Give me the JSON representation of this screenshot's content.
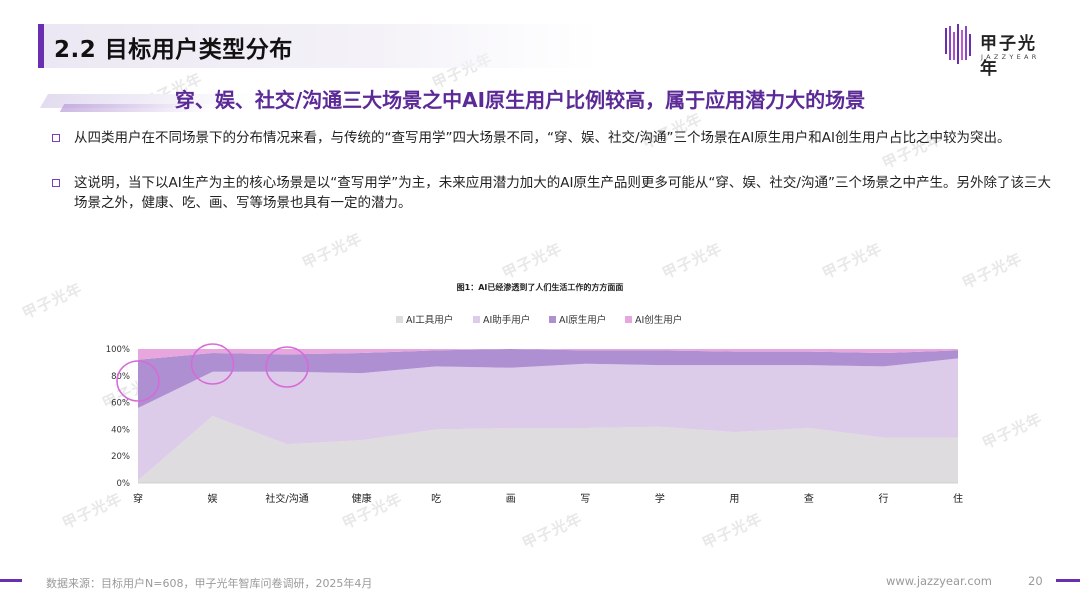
{
  "header": {
    "title": "2.2 目标用户类型分布",
    "logo_cn": "甲子光年",
    "logo_en": "JAZZYEAR"
  },
  "headline": "穿、娱、社交/沟通三大场景之中AI原生用户比例较高，属于应用潜力大的场景",
  "bullets": [
    "从四类用户在不同场景下的分布情况来看，与传统的“查写用学”四大场景不同，“穿、娱、社交/沟通”三个场景在AI原生用户和AI创生用户占比之中较为突出。",
    "这说明，当下以AI生产为主的核心场景是以“查写用学”为主，未来应用潜力加大的AI原生产品则更多可能从“穿、娱、社交/沟通”三个场景之中产生。另外除了该三大场景之外，健康、吃、画、写等场景也具有一定的潜力。"
  ],
  "colors": {
    "accent": "#6a2fb0",
    "headline": "#5b2a96",
    "series": [
      "#dedcde",
      "#dccbe9",
      "#ad8fd2",
      "#e7a6de"
    ],
    "highlight_circle": "#d76ad9"
  },
  "chart_data": {
    "type": "area",
    "stacked": "percent",
    "title": "图1：AI已经渗透到了人们生活工作的方方面面",
    "categories": [
      "穿",
      "娱",
      "社交/沟通",
      "健康",
      "吃",
      "画",
      "写",
      "学",
      "用",
      "查",
      "行",
      "住"
    ],
    "series": [
      {
        "name": "AI工具用户",
        "values": [
          2,
          50,
          29,
          32,
          40,
          41,
          41,
          42,
          38,
          41,
          34,
          34
        ]
      },
      {
        "name": "AI助手用户",
        "values": [
          54,
          33,
          54,
          50,
          47,
          45,
          48,
          46,
          50,
          47,
          53,
          59
        ]
      },
      {
        "name": "AI原生用户",
        "values": [
          36,
          14,
          13,
          15,
          12,
          14,
          10,
          11,
          10,
          10,
          10,
          6
        ]
      },
      {
        "name": "AI创生用户",
        "values": [
          8,
          3,
          4,
          3,
          1,
          0,
          1,
          1,
          2,
          2,
          3,
          1
        ]
      }
    ],
    "ylim": [
      0,
      100
    ],
    "yticks": [
      "0%",
      "20%",
      "40%",
      "60%",
      "80%",
      "100%"
    ],
    "legend_position": "top-center",
    "grid": false,
    "highlighted_categories": [
      "穿",
      "娱",
      "社交/沟通"
    ]
  },
  "footer": {
    "source": "数据来源：目标用户N=608，甲子光年智库问卷调研，2025年4月",
    "url": "www.jazzyear.com",
    "page": "20"
  },
  "watermark_text": "甲子光年"
}
